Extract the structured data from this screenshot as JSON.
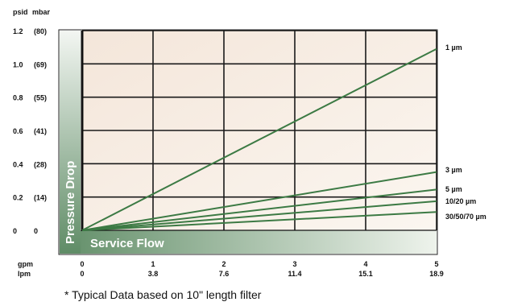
{
  "chart_data": {
    "type": "line",
    "y_units": [
      "psid",
      "mbar"
    ],
    "y_ticks": [
      {
        "psid": "1.2",
        "mbar": "(80)",
        "value": 1.2
      },
      {
        "psid": "1.0",
        "mbar": "(69)",
        "value": 1.0
      },
      {
        "psid": "0.8",
        "mbar": "(55)",
        "value": 0.8
      },
      {
        "psid": "0.6",
        "mbar": "(41)",
        "value": 0.6
      },
      {
        "psid": "0.4",
        "mbar": "(28)",
        "value": 0.4
      },
      {
        "psid": "0.2",
        "mbar": "(14)",
        "value": 0.2
      },
      {
        "psid": "0",
        "mbar": "0",
        "value": 0
      }
    ],
    "x_units": [
      "gpm",
      "lpm"
    ],
    "x_ticks": [
      {
        "gpm": "0",
        "lpm": "0",
        "value": 0
      },
      {
        "gpm": "1",
        "lpm": "3.8",
        "value": 1
      },
      {
        "gpm": "2",
        "lpm": "7.6",
        "value": 2
      },
      {
        "gpm": "3",
        "lpm": "11.4",
        "value": 3
      },
      {
        "gpm": "4",
        "lpm": "15.1",
        "value": 4
      },
      {
        "gpm": "5",
        "lpm": "18.9",
        "value": 5
      }
    ],
    "xlim": [
      0,
      5
    ],
    "ylim": [
      0,
      1.2
    ],
    "ylabel": "Pressure Drop",
    "xlabel": "Service Flow",
    "series": [
      {
        "name": "1 µm",
        "x": [
          0,
          5
        ],
        "y": [
          0,
          1.09
        ]
      },
      {
        "name": "3 µm",
        "x": [
          0,
          5
        ],
        "y": [
          0,
          0.35
        ]
      },
      {
        "name": "5 µm",
        "x": [
          0,
          5
        ],
        "y": [
          0,
          0.245
        ]
      },
      {
        "name": "10/20 µm",
        "x": [
          0,
          5
        ],
        "y": [
          0,
          0.175
        ]
      },
      {
        "name": "30/50/70 µm",
        "x": [
          0,
          5
        ],
        "y": [
          0,
          0.11
        ]
      }
    ],
    "grid": true,
    "line_color": "#3c7a44",
    "plot_background": "#f7ece2",
    "banner_color": "#7a9e7e",
    "footnote": "* Typical Data based on 10\" length filter"
  }
}
